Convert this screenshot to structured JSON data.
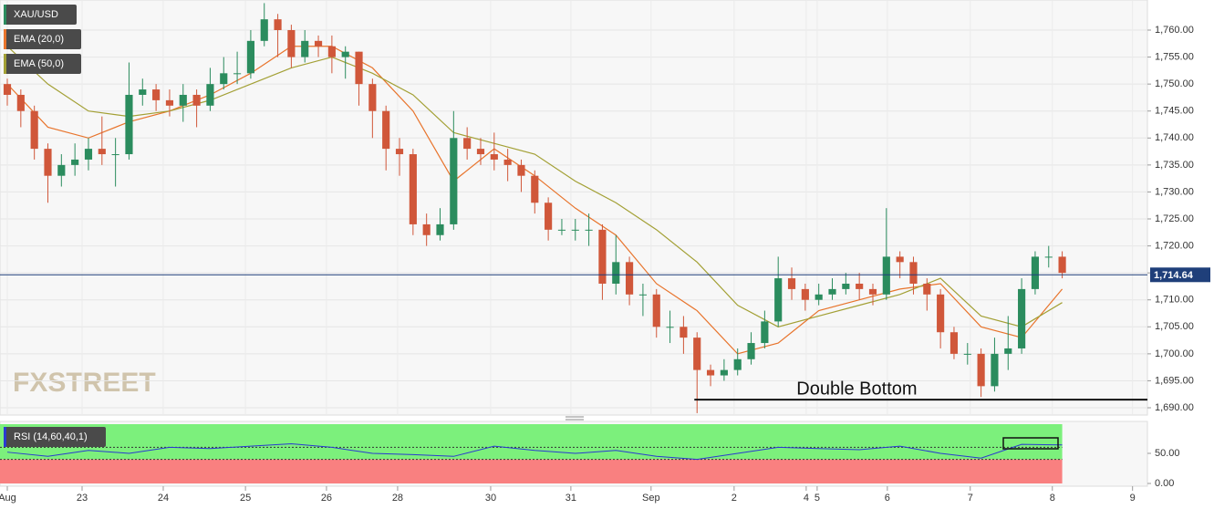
{
  "chart_data": [
    {
      "type": "candlestick",
      "name": "XAU/USD",
      "up_color": "#2b8c5e",
      "down_color": "#d0573a",
      "open": [
        1750,
        1748,
        1745,
        1738,
        1733,
        1735,
        1736,
        1738,
        1737,
        1737,
        1748,
        1749,
        1747,
        1746,
        1748,
        1746,
        1750,
        1752,
        1752,
        1758,
        1762,
        1760,
        1755,
        1758,
        1757,
        1755,
        1756,
        1750,
        1745,
        1738,
        1737,
        1724,
        1722,
        1724,
        1740,
        1738,
        1737,
        1736,
        1735,
        1733,
        1728,
        1723,
        1723,
        1723,
        1723,
        1713,
        1717,
        1711,
        1711,
        1705,
        1705,
        1703,
        1697,
        1696,
        1697,
        1699,
        1702,
        1706,
        1714,
        1712,
        1710,
        1711,
        1712,
        1713,
        1712,
        1711,
        1718,
        1717,
        1713,
        1711,
        1704,
        1700,
        1700,
        1694,
        1700,
        1701,
        1712,
        1718,
        1718
      ],
      "high": [
        1751,
        1749,
        1746,
        1739,
        1737,
        1739,
        1740,
        1744,
        1740,
        1754,
        1751,
        1750,
        1749,
        1750,
        1749,
        1753,
        1755,
        1756,
        1760,
        1765,
        1763,
        1761,
        1760,
        1759,
        1759,
        1757,
        1756,
        1751,
        1746,
        1740,
        1738,
        1726,
        1727,
        1745,
        1742,
        1740,
        1741,
        1738,
        1736,
        1734,
        1729,
        1725,
        1725,
        1726,
        1724,
        1722,
        1718,
        1713,
        1712,
        1708,
        1707,
        1704,
        1698,
        1699,
        1701,
        1704,
        1708,
        1718,
        1716,
        1713,
        1713,
        1714,
        1715,
        1715,
        1713,
        1727,
        1719,
        1718,
        1714,
        1712,
        1705,
        1702,
        1701,
        1703,
        1707,
        1714,
        1719,
        1720,
        1719
      ],
      "low": [
        1746,
        1742,
        1736,
        1728,
        1731,
        1733,
        1734,
        1735,
        1731,
        1736,
        1746,
        1745,
        1744,
        1743,
        1742,
        1745,
        1749,
        1750,
        1751,
        1757,
        1755,
        1753,
        1754,
        1755,
        1752,
        1751,
        1746,
        1740,
        1734,
        1733,
        1722,
        1720,
        1721,
        1723,
        1736,
        1735,
        1734,
        1732,
        1730,
        1726,
        1721,
        1722,
        1721,
        1720,
        1710,
        1711,
        1709,
        1707,
        1703,
        1702,
        1700,
        1689,
        1694,
        1695,
        1696,
        1698,
        1701,
        1705,
        1710,
        1708,
        1709,
        1710,
        1711,
        1710,
        1709,
        1710,
        1714,
        1711,
        1708,
        1701,
        1699,
        1698,
        1692,
        1693,
        1697,
        1700,
        1711,
        1716,
        1714
      ],
      "close": [
        1748,
        1745,
        1738,
        1733,
        1735,
        1736,
        1738,
        1737,
        1737,
        1748,
        1749,
        1747,
        1746,
        1748,
        1746,
        1750,
        1752,
        1752,
        1758,
        1762,
        1760,
        1755,
        1758,
        1757,
        1755,
        1756,
        1750,
        1745,
        1738,
        1737,
        1724,
        1722,
        1724,
        1740,
        1738,
        1737,
        1736,
        1735,
        1733,
        1728,
        1723,
        1723,
        1723,
        1723,
        1713,
        1717,
        1711,
        1711,
        1705,
        1705,
        1703,
        1697,
        1696,
        1697,
        1699,
        1702,
        1706,
        1714,
        1712,
        1710,
        1711,
        1712,
        1713,
        1712,
        1711,
        1718,
        1717,
        1713,
        1711,
        1704,
        1700,
        1700,
        1694,
        1700,
        1701,
        1712,
        1718,
        1718,
        1715
      ],
      "series": [
        {
          "name": "EMA (20,0)",
          "color": "#e8742c",
          "x": [
            0,
            3,
            6,
            9,
            12,
            15,
            18,
            21,
            24,
            27,
            30,
            33,
            36,
            39,
            42,
            45,
            48,
            51,
            54,
            57,
            60,
            63,
            66,
            69,
            72,
            75,
            78
          ],
          "values": [
            1750,
            1742,
            1740,
            1743,
            1745,
            1748,
            1752,
            1757,
            1757,
            1753,
            1745,
            1732,
            1738,
            1733,
            1727,
            1722,
            1713,
            1708,
            1700,
            1702,
            1708,
            1710,
            1712,
            1713,
            1705,
            1703,
            1712
          ]
        },
        {
          "name": "EMA (50,0)",
          "color": "#a3a035",
          "x": [
            0,
            3,
            6,
            9,
            12,
            15,
            18,
            21,
            24,
            27,
            30,
            33,
            36,
            39,
            42,
            45,
            48,
            51,
            54,
            57,
            60,
            63,
            66,
            69,
            72,
            75,
            78
          ],
          "values": [
            1757,
            1750,
            1745,
            1744,
            1745,
            1747,
            1750,
            1753,
            1755,
            1752,
            1748,
            1741,
            1739,
            1737,
            1732,
            1728,
            1723,
            1717,
            1709,
            1705,
            1707,
            1709,
            1711,
            1714,
            1707,
            1705,
            1709.5
          ]
        }
      ],
      "xlim": [
        -0.54,
        84.3
      ],
      "xticks": [
        {
          "value": 0,
          "label": "Aug"
        },
        {
          "value": 5.53,
          "label": "23"
        },
        {
          "value": 11.53,
          "label": "24"
        },
        {
          "value": 17.61,
          "label": "25"
        },
        {
          "value": 23.6,
          "label": "26"
        },
        {
          "value": 28.86,
          "label": "28"
        },
        {
          "value": 35.74,
          "label": "30"
        },
        {
          "value": 41.67,
          "label": "31"
        },
        {
          "value": 47.6,
          "label": "Sep"
        },
        {
          "value": 53.74,
          "label": "2"
        },
        {
          "value": 59.07,
          "label": "4"
        },
        {
          "value": 59.88,
          "label": "5"
        },
        {
          "value": 65.07,
          "label": "6"
        },
        {
          "value": 71.2,
          "label": "7"
        },
        {
          "value": 77.27,
          "label": "8"
        },
        {
          "value": 83.2,
          "label": "9"
        }
      ],
      "ylim": [
        1688.65,
        1765.58
      ],
      "yticks": [
        {
          "value": 1690,
          "label": "1,690.00"
        },
        {
          "value": 1695,
          "label": "1,695.00"
        },
        {
          "value": 1700,
          "label": "1,700.00"
        },
        {
          "value": 1705,
          "label": "1,705.00"
        },
        {
          "value": 1710,
          "label": "1,710.00"
        },
        {
          "value": 1715,
          "label": "1,715.00"
        },
        {
          "value": 1720,
          "label": "1,720.00"
        },
        {
          "value": 1725,
          "label": "1,725.00"
        },
        {
          "value": 1730,
          "label": "1,730.00"
        },
        {
          "value": 1735,
          "label": "1,735.00"
        },
        {
          "value": 1740,
          "label": "1,740.00"
        },
        {
          "value": 1745,
          "label": "1,745.00"
        },
        {
          "value": 1750,
          "label": "1,750.00"
        },
        {
          "value": 1755,
          "label": "1,755.00"
        },
        {
          "value": 1760,
          "label": "1,760.00"
        }
      ],
      "grid": true,
      "last_price": {
        "value": 1714.64,
        "label": "1,714.64"
      },
      "annotation": {
        "text": "Double Bottom",
        "value": 1691.5,
        "x": [
          50.8,
          84.3
        ]
      },
      "watermark": "FXSTREET",
      "legend": "upper left"
    },
    {
      "type": "line",
      "title": "RSI (14,60,40,1)",
      "levels": [
        40,
        60
      ],
      "series": [
        {
          "color": "#2a3ad0",
          "x": [
            0,
            3,
            6,
            9,
            12,
            15,
            18,
            21,
            24,
            27,
            30,
            33,
            36,
            39,
            42,
            45,
            48,
            51,
            54,
            57,
            60,
            63,
            66,
            69,
            72,
            75,
            78
          ],
          "values": [
            52,
            45,
            55,
            50,
            60,
            58,
            62,
            66,
            60,
            50,
            48,
            45,
            62,
            55,
            50,
            55,
            45,
            40,
            50,
            60,
            58,
            56,
            62,
            50,
            42,
            65,
            64
          ]
        }
      ],
      "xlim": [
        -0.54,
        84.3
      ],
      "ylim": [
        0,
        98.5
      ],
      "yticks": [
        {
          "value": 50,
          "label": "50.00"
        },
        {
          "value": 0,
          "label": "0.00"
        }
      ]
    }
  ]
}
